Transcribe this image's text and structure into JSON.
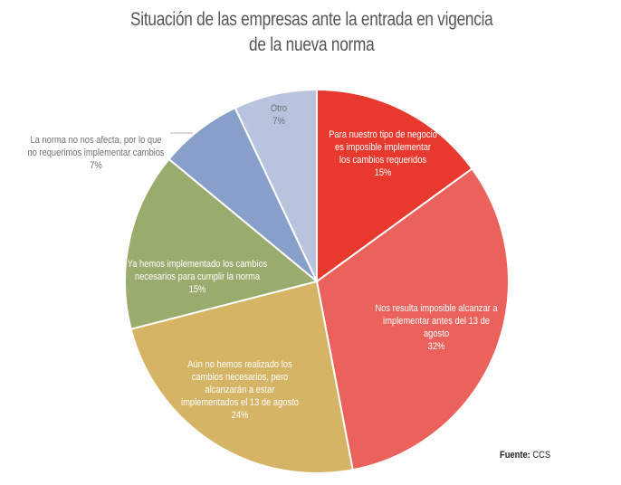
{
  "chart_data": {
    "type": "pie",
    "title": "Situación de las empresas ante la entrada en vigencia de la nueva norma",
    "title_lines": [
      "Situación de las empresas ante la entrada en vigencia",
      "de la nueva norma"
    ],
    "start": "12 o'clock",
    "direction": "clockwise",
    "slices": [
      {
        "label": "Para nuestro tipo de negocio es imposible implementar los cambios requeridos",
        "label_lines": [
          "Para nuestro tipo de negocio",
          "es imposible implementar",
          "los cambios requeridos"
        ],
        "value": 15,
        "value_label": "15%",
        "color": "#E8392F",
        "label_color": "light"
      },
      {
        "label": "Nos resulta imposible alcanzar a implementar antes del 13 de agosto",
        "label_lines": [
          "Nos resulta imposible alcanzar a",
          "implementar antes del 13 de",
          "agosto"
        ],
        "value": 32,
        "value_label": "32%",
        "color": "#EA625B",
        "label_color": "light"
      },
      {
        "label": "Aún no hemos realizado los cambios necesarios, pero alcanzarán a estar implementados el 13 de agosto",
        "label_lines": [
          "Aún no hemos realizado los",
          "cambios necesarios, pero",
          "alcanzarán a estar",
          "implementados el 13 de agosto"
        ],
        "value": 24,
        "value_label": "24%",
        "color": "#D6B465",
        "label_color": "light"
      },
      {
        "label": "Ya hemos implementado los cambios necesarios para cumplir la norma",
        "label_lines": [
          "Ya hemos implementado los cambios",
          "necesarios para cumplir la norma"
        ],
        "value": 15,
        "value_label": "15%",
        "color": "#9AAB6E",
        "label_color": "light"
      },
      {
        "label": "La norma no nos afecta, por lo que no requerimos implementar cambios",
        "label_lines": [
          "La norma no nos afecta, por lo que",
          "no requerimos implementar cambios"
        ],
        "value": 7,
        "value_label": "7%",
        "color": "#889FCA",
        "label_color": "dark",
        "label_outside": true
      },
      {
        "label": "Otro",
        "label_lines": [
          "Otro"
        ],
        "value": 7,
        "value_label": "7%",
        "color": "#B8C3DE",
        "label_color": "dark"
      }
    ],
    "legend": "none",
    "source_label": "Fuente:",
    "source_value": "CCS"
  }
}
